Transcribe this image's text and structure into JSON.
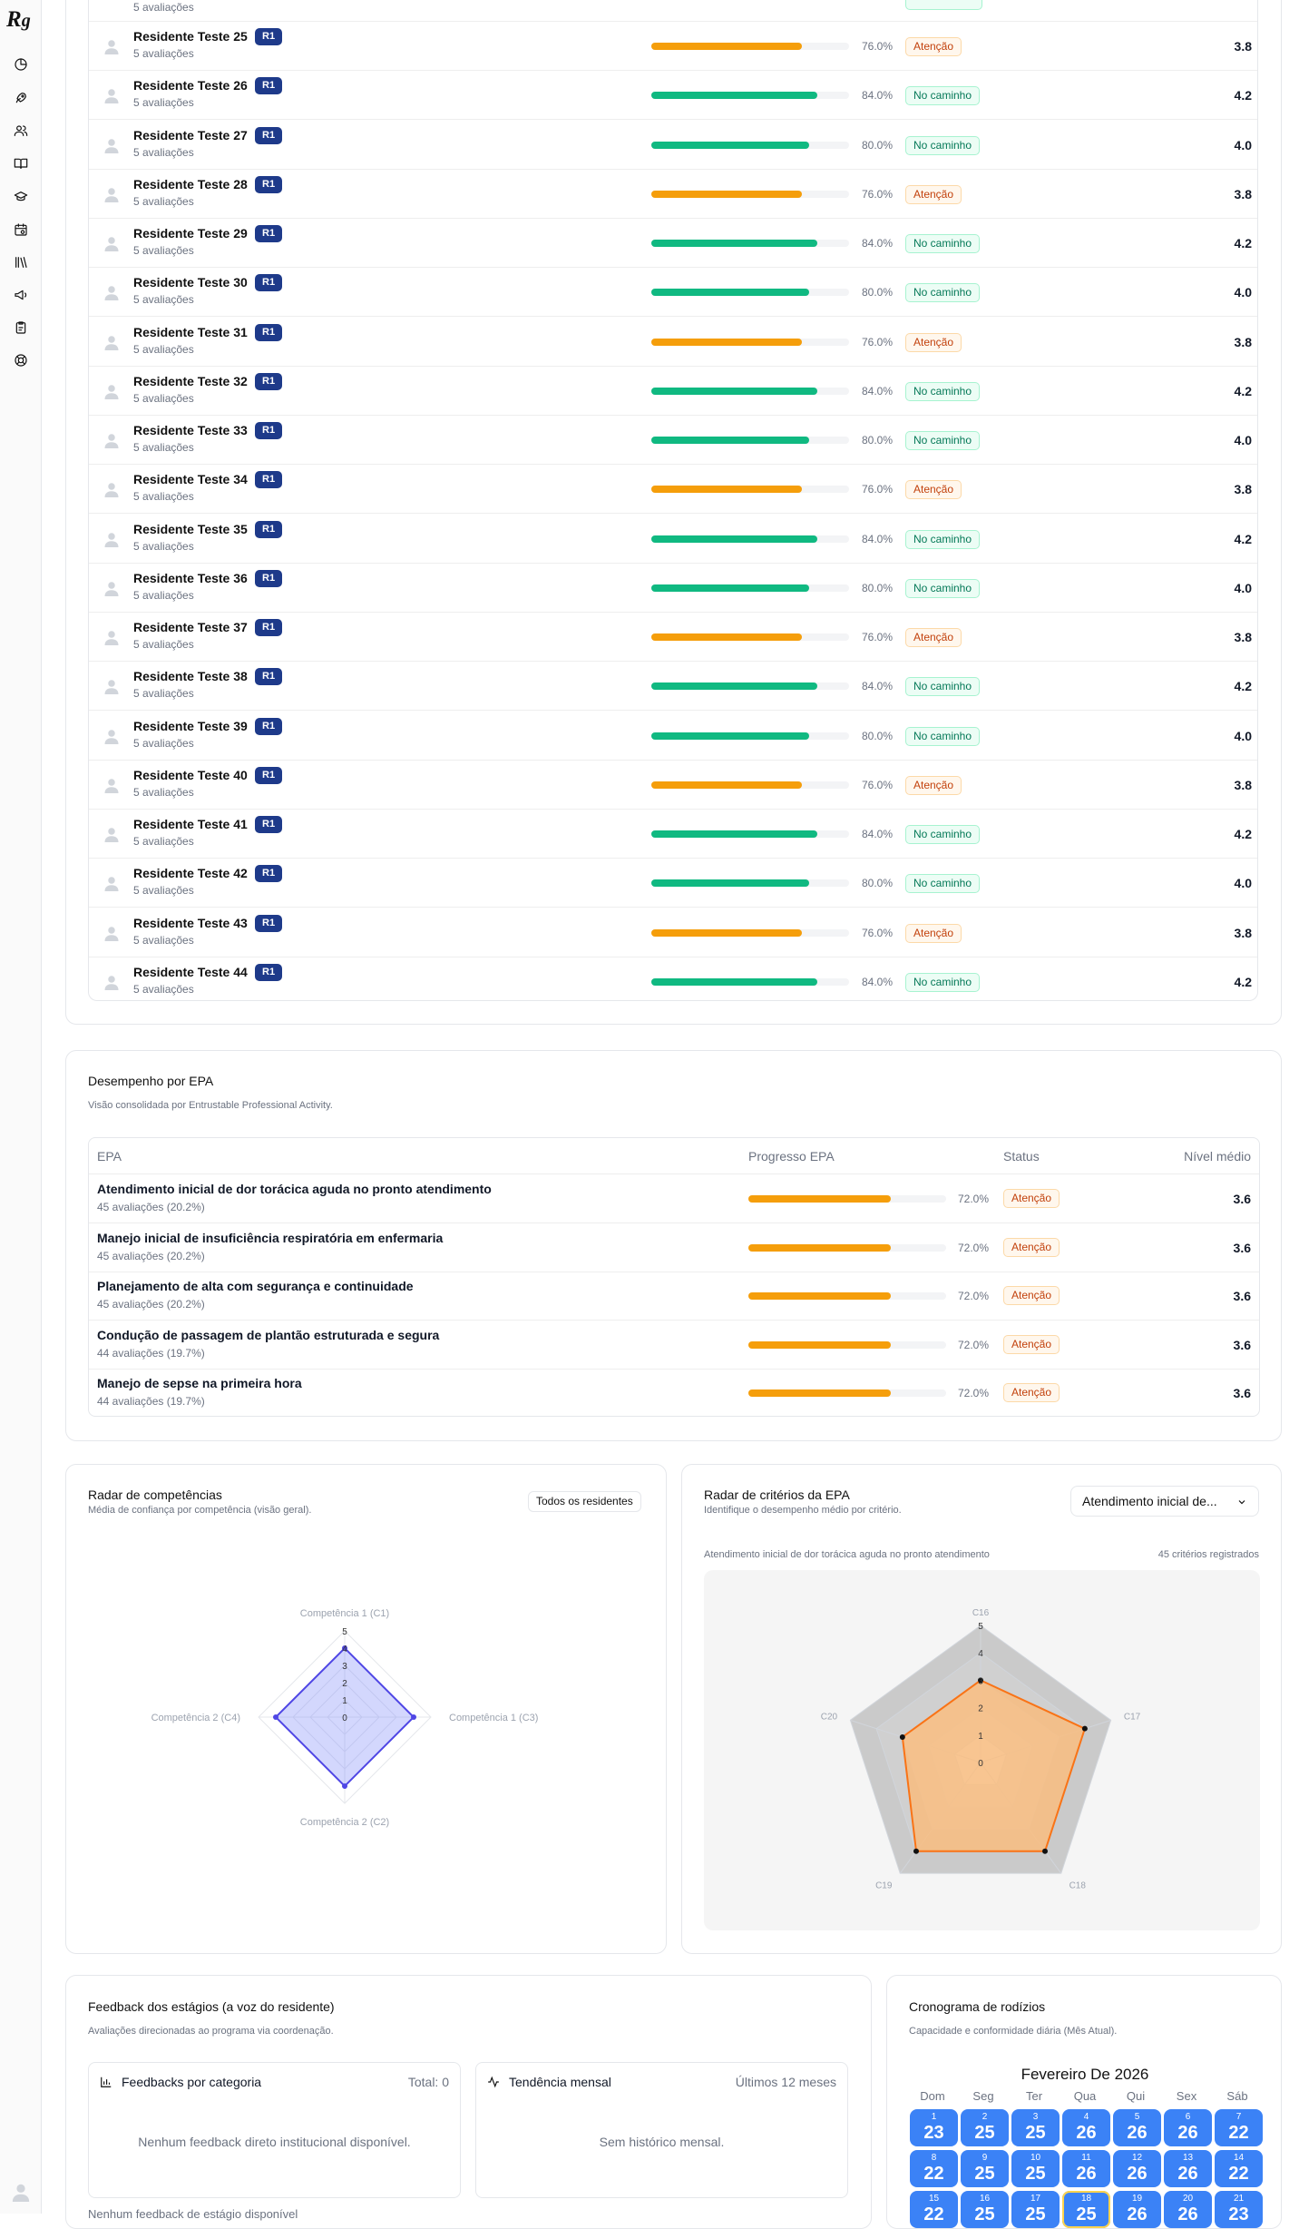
{
  "residents": [
    {
      "name": "Residente Teste 25",
      "badge": "R1",
      "sub": "5 avaliações",
      "progress": 76.0,
      "pct": "76.0%",
      "status": "Atenção",
      "score": "3.8"
    },
    {
      "name": "Residente Teste 26",
      "badge": "R1",
      "sub": "5 avaliações",
      "progress": 84.0,
      "pct": "84.0%",
      "status": "No caminho",
      "score": "4.2"
    },
    {
      "name": "Residente Teste 27",
      "badge": "R1",
      "sub": "5 avaliações",
      "progress": 80.0,
      "pct": "80.0%",
      "status": "No caminho",
      "score": "4.0"
    },
    {
      "name": "Residente Teste 28",
      "badge": "R1",
      "sub": "5 avaliações",
      "progress": 76.0,
      "pct": "76.0%",
      "status": "Atenção",
      "score": "3.8"
    },
    {
      "name": "Residente Teste 29",
      "badge": "R1",
      "sub": "5 avaliações",
      "progress": 84.0,
      "pct": "84.0%",
      "status": "No caminho",
      "score": "4.2"
    },
    {
      "name": "Residente Teste 30",
      "badge": "R1",
      "sub": "5 avaliações",
      "progress": 80.0,
      "pct": "80.0%",
      "status": "No caminho",
      "score": "4.0"
    },
    {
      "name": "Residente Teste 31",
      "badge": "R1",
      "sub": "5 avaliações",
      "progress": 76.0,
      "pct": "76.0%",
      "status": "Atenção",
      "score": "3.8"
    },
    {
      "name": "Residente Teste 32",
      "badge": "R1",
      "sub": "5 avaliações",
      "progress": 84.0,
      "pct": "84.0%",
      "status": "No caminho",
      "score": "4.2"
    },
    {
      "name": "Residente Teste 33",
      "badge": "R1",
      "sub": "5 avaliações",
      "progress": 80.0,
      "pct": "80.0%",
      "status": "No caminho",
      "score": "4.0"
    },
    {
      "name": "Residente Teste 34",
      "badge": "R1",
      "sub": "5 avaliações",
      "progress": 76.0,
      "pct": "76.0%",
      "status": "Atenção",
      "score": "3.8"
    },
    {
      "name": "Residente Teste 35",
      "badge": "R1",
      "sub": "5 avaliações",
      "progress": 84.0,
      "pct": "84.0%",
      "status": "No caminho",
      "score": "4.2"
    },
    {
      "name": "Residente Teste 36",
      "badge": "R1",
      "sub": "5 avaliações",
      "progress": 80.0,
      "pct": "80.0%",
      "status": "No caminho",
      "score": "4.0"
    },
    {
      "name": "Residente Teste 37",
      "badge": "R1",
      "sub": "5 avaliações",
      "progress": 76.0,
      "pct": "76.0%",
      "status": "Atenção",
      "score": "3.8"
    },
    {
      "name": "Residente Teste 38",
      "badge": "R1",
      "sub": "5 avaliações",
      "progress": 84.0,
      "pct": "84.0%",
      "status": "No caminho",
      "score": "4.2"
    },
    {
      "name": "Residente Teste 39",
      "badge": "R1",
      "sub": "5 avaliações",
      "progress": 80.0,
      "pct": "80.0%",
      "status": "No caminho",
      "score": "4.0"
    },
    {
      "name": "Residente Teste 40",
      "badge": "R1",
      "sub": "5 avaliações",
      "progress": 76.0,
      "pct": "76.0%",
      "status": "Atenção",
      "score": "3.8"
    },
    {
      "name": "Residente Teste 41",
      "badge": "R1",
      "sub": "5 avaliações",
      "progress": 84.0,
      "pct": "84.0%",
      "status": "No caminho",
      "score": "4.2"
    },
    {
      "name": "Residente Teste 42",
      "badge": "R1",
      "sub": "5 avaliações",
      "progress": 80.0,
      "pct": "80.0%",
      "status": "No caminho",
      "score": "4.0"
    },
    {
      "name": "Residente Teste 43",
      "badge": "R1",
      "sub": "5 avaliações",
      "progress": 76.0,
      "pct": "76.0%",
      "status": "Atenção",
      "score": "3.8"
    },
    {
      "name": "Residente Teste 44",
      "badge": "R1",
      "sub": "5 avaliações",
      "progress": 84.0,
      "pct": "84.0%",
      "status": "No caminho",
      "score": "4.2"
    }
  ],
  "top_partial_sub": "5 avaliações",
  "epa": {
    "title": "Desempenho por EPA",
    "subtitle": "Visão consolidada por Entrustable Professional Activity.",
    "headers": {
      "epa": "EPA",
      "progress": "Progresso EPA",
      "status": "Status",
      "level": "Nível médio"
    },
    "rows": [
      {
        "name": "Atendimento inicial de dor torácica aguda no pronto atendimento",
        "sub": "45 avaliações (20.2%)",
        "progress": 72.0,
        "pct": "72.0%",
        "status": "Atenção",
        "score": "3.6"
      },
      {
        "name": "Manejo inicial de insuficiência respiratória em enfermaria",
        "sub": "45 avaliações (20.2%)",
        "progress": 72.0,
        "pct": "72.0%",
        "status": "Atenção",
        "score": "3.6"
      },
      {
        "name": "Planejamento de alta com segurança e continuidade",
        "sub": "45 avaliações (20.2%)",
        "progress": 72.0,
        "pct": "72.0%",
        "status": "Atenção",
        "score": "3.6"
      },
      {
        "name": "Condução de passagem de plantão estruturada e segura",
        "sub": "44 avaliações (19.7%)",
        "progress": 72.0,
        "pct": "72.0%",
        "status": "Atenção",
        "score": "3.6"
      },
      {
        "name": "Manejo de sepse na primeira hora",
        "sub": "44 avaliações (19.7%)",
        "progress": 72.0,
        "pct": "72.0%",
        "status": "Atenção",
        "score": "3.6"
      }
    ]
  },
  "radar_comp": {
    "title": "Radar de competências",
    "subtitle": "Média de confiança por competência (visão geral).",
    "filter_label": "Todos os residentes",
    "axes": [
      "Competência 1 (C1)",
      "Competência 1 (C3)",
      "Competência 2 (C2)",
      "Competência 2 (C4)"
    ],
    "ticks": [
      "0",
      "1",
      "2",
      "3",
      "4",
      "5"
    ],
    "values": [
      4,
      4,
      4,
      4
    ],
    "max": 5
  },
  "radar_epa": {
    "title": "Radar de critérios da EPA",
    "subtitle": "Identifique o desempenho médio por critério.",
    "select_value": "Atendimento inicial de...",
    "epa_caption": "Atendimento inicial de dor torácica aguda no pronto atendimento",
    "count_caption": "45 critérios registrados",
    "axes": [
      "C16",
      "C17",
      "C18",
      "C19",
      "C20"
    ],
    "ticks": [
      "0",
      "1",
      "2",
      "3",
      "4",
      "5"
    ],
    "values": [
      3,
      4,
      4,
      4,
      3
    ],
    "max": 5
  },
  "feedback": {
    "title": "Feedback dos estágios (a voz do residente)",
    "subtitle": "Avaliações direcionadas ao programa via coordenação.",
    "by_category": {
      "title": "Feedbacks por categoria",
      "total": "Total: 0",
      "empty": "Nenhum feedback direto institucional disponível."
    },
    "trend": {
      "title": "Tendência mensal",
      "range": "Últimos 12 meses",
      "empty": "Sem histórico mensal."
    },
    "footer_partial": "Nenhum feedback de estágio disponível"
  },
  "schedule": {
    "title": "Cronograma de rodízios",
    "subtitle": "Capacidade e conformidade diária (Mês Atual).",
    "month": "Fevereiro De 2026",
    "weekdays": [
      "Dom",
      "Seg",
      "Ter",
      "Qua",
      "Qui",
      "Sex",
      "Sáb"
    ],
    "days": [
      {
        "d": "1",
        "v": "23"
      },
      {
        "d": "2",
        "v": "25"
      },
      {
        "d": "3",
        "v": "25"
      },
      {
        "d": "4",
        "v": "26"
      },
      {
        "d": "5",
        "v": "26"
      },
      {
        "d": "6",
        "v": "26"
      },
      {
        "d": "7",
        "v": "22"
      },
      {
        "d": "8",
        "v": "22"
      },
      {
        "d": "9",
        "v": "25"
      },
      {
        "d": "10",
        "v": "25"
      },
      {
        "d": "11",
        "v": "26"
      },
      {
        "d": "12",
        "v": "26"
      },
      {
        "d": "13",
        "v": "26"
      },
      {
        "d": "14",
        "v": "22"
      },
      {
        "d": "15",
        "v": "22"
      },
      {
        "d": "16",
        "v": "25"
      },
      {
        "d": "17",
        "v": "25"
      },
      {
        "d": "18",
        "v": "25"
      },
      {
        "d": "19",
        "v": "26"
      },
      {
        "d": "20",
        "v": "26"
      },
      {
        "d": "21",
        "v": "23"
      }
    ],
    "today": "18"
  },
  "colors": {
    "warn": "#f59e0b",
    "ok": "#10b981",
    "badge": "#1e3a8a",
    "calendar": "#3b82f6",
    "radar_comp": "#4f46e5",
    "radar_epa": "#f97316"
  }
}
